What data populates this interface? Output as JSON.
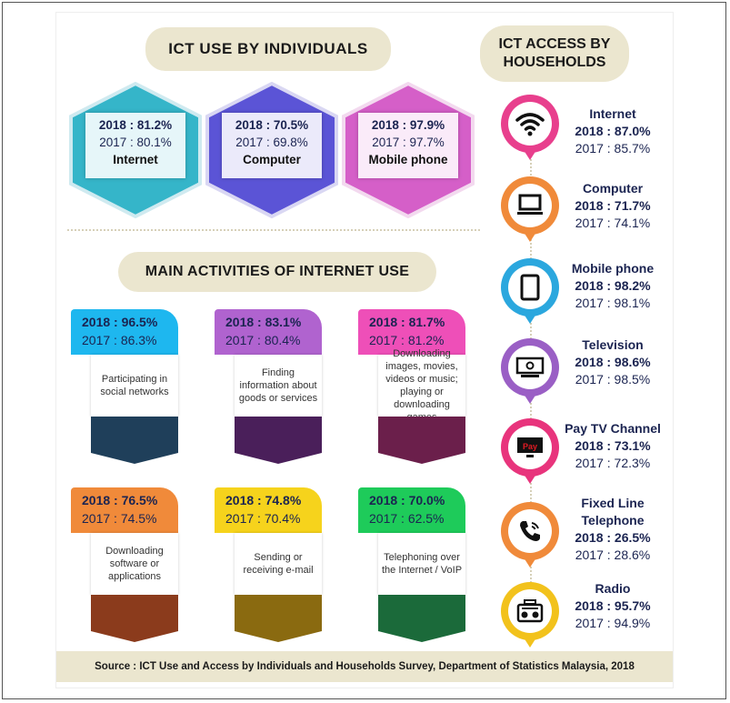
{
  "sections": {
    "individuals_title": "ICT USE BY INDIVIDUALS",
    "activities_title": "MAIN ACTIVITIES OF INTERNET USE",
    "access_title_line1": "ICT ACCESS BY",
    "access_title_line2": "HOUSEHOLDS"
  },
  "individuals": [
    {
      "y2018": "2018 : 81.2%",
      "y2017": "2017 : 80.1%",
      "name": "Internet",
      "color": "#35b5c9"
    },
    {
      "y2018": "2018 : 70.5%",
      "y2017": "2017 : 69.8%",
      "name": "Computer",
      "color": "#5b54d6"
    },
    {
      "y2018": "2018 : 97.9%",
      "y2017": "2017 : 97.7%",
      "name": "Mobile phone",
      "color": "#d55fc8"
    }
  ],
  "activities": [
    {
      "y2018": "2018 : 96.5%",
      "y2017": "2017 : 86.3%",
      "label": "Participating in social networks",
      "tab": "#1eb7ef",
      "foot": "#1f3f5a"
    },
    {
      "y2018": "2018 : 83.1%",
      "y2017": "2017 : 80.4%",
      "label": "Finding information about goods or services",
      "tab": "#b063cf",
      "foot": "#4a1f5a"
    },
    {
      "y2018": "2018 : 81.7%",
      "y2017": "2017 : 81.2%",
      "label": "Downloading images, movies, videos or music; playing or downloading games",
      "tab": "#ee4fb8",
      "foot": "#6b1f4b"
    },
    {
      "y2018": "2018 : 76.5%",
      "y2017": "2017 : 74.5%",
      "label": "Downloading software or applications",
      "tab": "#f08a3a",
      "foot": "#8b3b1c"
    },
    {
      "y2018": "2018 : 74.8%",
      "y2017": "2017 : 70.4%",
      "label": "Sending or receiving e-mail",
      "tab": "#f6d31c",
      "foot": "#8a6a10"
    },
    {
      "y2018": "2018 : 70.0%",
      "y2017": "2017 : 62.5%",
      "label": "Telephoning over the Internet / VoIP",
      "tab": "#1ecb5a",
      "foot": "#1b6a3a"
    }
  ],
  "households": [
    {
      "name": "Internet",
      "y2018": "2018 : 87.0%",
      "y2017": "2017 : 85.7%",
      "color": "#e83f8d",
      "icon": "wifi-icon"
    },
    {
      "name": "Computer",
      "y2018": "2018 : 71.7%",
      "y2017": "2017 : 74.1%",
      "color": "#f08a3a",
      "icon": "computer-icon"
    },
    {
      "name": "Mobile phone",
      "y2018": "2018 : 98.2%",
      "y2017": "2017 : 98.1%",
      "color": "#2ba7de",
      "icon": "tablet-icon"
    },
    {
      "name": "Television",
      "y2018": "2018 : 98.6%",
      "y2017": "2017 : 98.5%",
      "color": "#9a5fc5",
      "icon": "television-icon"
    },
    {
      "name": "Pay TV Channel",
      "y2018": "2018 : 73.1%",
      "y2017": "2017 : 72.3%",
      "color": "#e8347c",
      "icon": "pay-tv-icon",
      "icon_text": "Pay"
    },
    {
      "name_line1": "Fixed Line",
      "name_line2": "Telephone",
      "y2018": "2018 : 26.5%",
      "y2017": "2017 : 28.6%",
      "color": "#f08a3a",
      "icon": "telephone-icon"
    },
    {
      "name": "Radio",
      "y2018": "2018 : 95.7%",
      "y2017": "2017 : 94.9%",
      "color": "#f2c21c",
      "icon": "radio-icon"
    }
  ],
  "source": "Source : ICT Use and Access by Individuals and Households Survey, Department of Statistics Malaysia, 2018"
}
